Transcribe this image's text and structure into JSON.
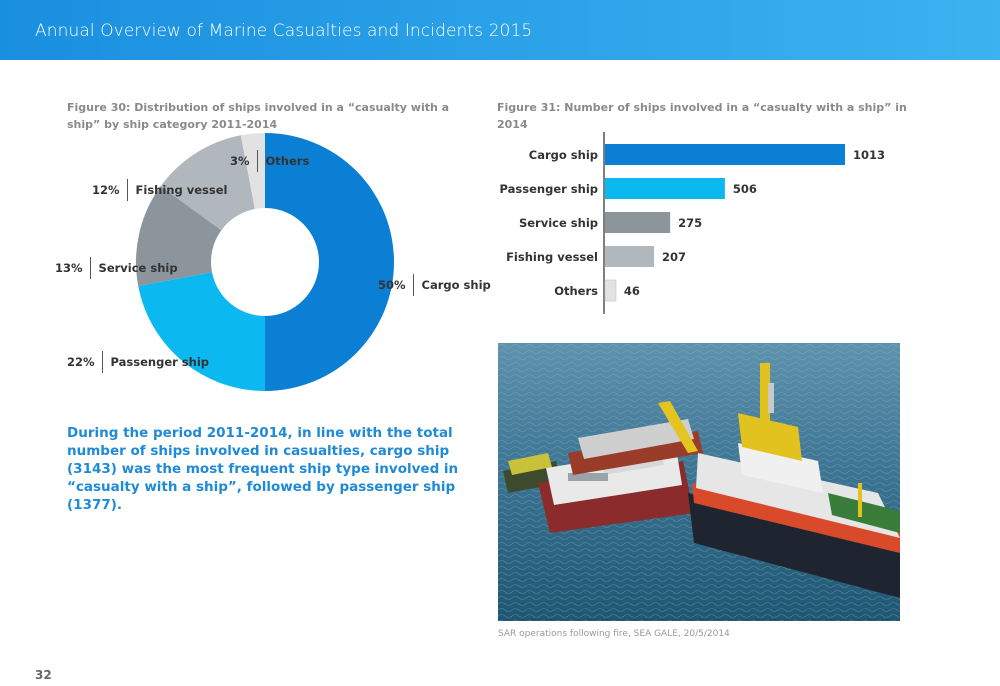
{
  "header": {
    "title": "Annual Overview of Marine Casualties and Incidents 2015"
  },
  "figure30": {
    "title": "Figure 30: Distribution of ships involved in a “casualty with a ship” by ship category 2011-2014"
  },
  "figure31": {
    "title": "Figure 31: Number of ships involved in a “casualty with a ship” in 2014"
  },
  "chart_data": [
    {
      "type": "pie",
      "variant": "donut",
      "title": "Figure 30: Distribution of ships involved in a “casualty with a ship” by ship category 2011-2014",
      "categories": [
        "Cargo ship",
        "Passenger ship",
        "Service ship",
        "Fishing vessel",
        "Others"
      ],
      "values": [
        50,
        22,
        13,
        12,
        3
      ],
      "labels": [
        "50%",
        "22%",
        "13%",
        "12%",
        "3%"
      ],
      "colors": [
        "#0b7fd4",
        "#0bb8f0",
        "#8b959b",
        "#b0b8bd",
        "#e2e2e2"
      ]
    },
    {
      "type": "bar",
      "orientation": "horizontal",
      "title": "Figure 31: Number of ships involved in a “casualty with a ship” in 2014",
      "categories": [
        "Cargo ship",
        "Passenger ship",
        "Service ship",
        "Fishing vessel",
        "Others"
      ],
      "values": [
        1013,
        506,
        275,
        207,
        46
      ],
      "labels": [
        "1013",
        "506",
        "275",
        "207",
        "46"
      ],
      "colors": [
        "#0b7fd4",
        "#0bb8f0",
        "#8b959b",
        "#b0b8bd",
        "#e2e2e2"
      ],
      "xlim": [
        0,
        1013
      ]
    }
  ],
  "summary": {
    "text": "During the period 2011-2014, in line with the total number of ships involved in casualties, cargo ship (3143)  was the most frequent ship type involved in “casualty with a ship”, followed by passenger ship (1377)."
  },
  "photo": {
    "caption": "SAR operations following fire, SEA GALE, 20/5/2014"
  },
  "page_number": "32"
}
